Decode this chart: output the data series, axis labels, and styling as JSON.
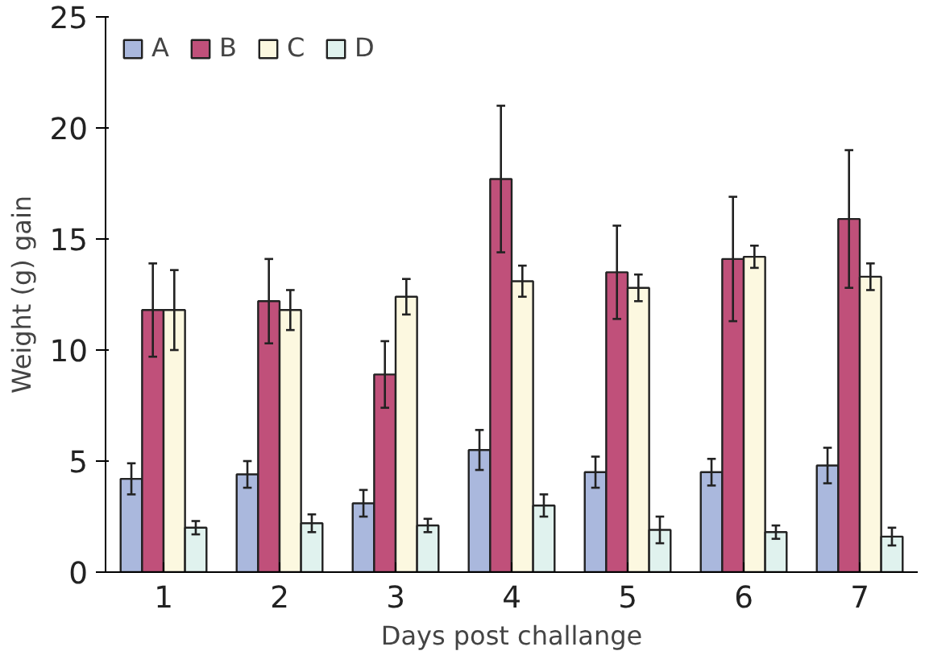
{
  "chart_data": {
    "type": "bar",
    "xlabel": "Days post challange",
    "ylabel": "Weight (g) gain",
    "categories": [
      "1",
      "2",
      "3",
      "4",
      "5",
      "6",
      "7"
    ],
    "series": [
      {
        "name": "A",
        "color": "#aab8dd",
        "values": [
          4.2,
          4.4,
          3.1,
          5.5,
          4.5,
          4.5,
          4.8
        ],
        "errors": [
          0.7,
          0.6,
          0.6,
          0.9,
          0.7,
          0.6,
          0.8
        ]
      },
      {
        "name": "B",
        "color": "#c0507a",
        "values": [
          11.8,
          12.2,
          8.9,
          17.7,
          13.5,
          14.1,
          15.9
        ],
        "errors": [
          2.1,
          1.9,
          1.5,
          [
            14.4,
            21.0
          ],
          2.1,
          2.8,
          3.1
        ]
      },
      {
        "name": "C",
        "color": "#fcf8e0",
        "values": [
          11.8,
          11.8,
          12.4,
          13.1,
          12.8,
          14.2,
          13.3
        ],
        "errors": [
          1.8,
          0.9,
          0.8,
          0.7,
          0.6,
          0.5,
          0.6
        ]
      },
      {
        "name": "D",
        "color": "#e0f2ee",
        "values": [
          2.0,
          2.2,
          2.1,
          3.0,
          1.9,
          1.8,
          1.6
        ],
        "errors": [
          0.3,
          0.4,
          0.3,
          0.5,
          0.6,
          0.3,
          0.4
        ]
      }
    ],
    "ylim": [
      0,
      25
    ],
    "yticks": [
      0,
      5,
      10,
      15,
      20,
      25
    ],
    "grid": false,
    "legend": "top left"
  }
}
